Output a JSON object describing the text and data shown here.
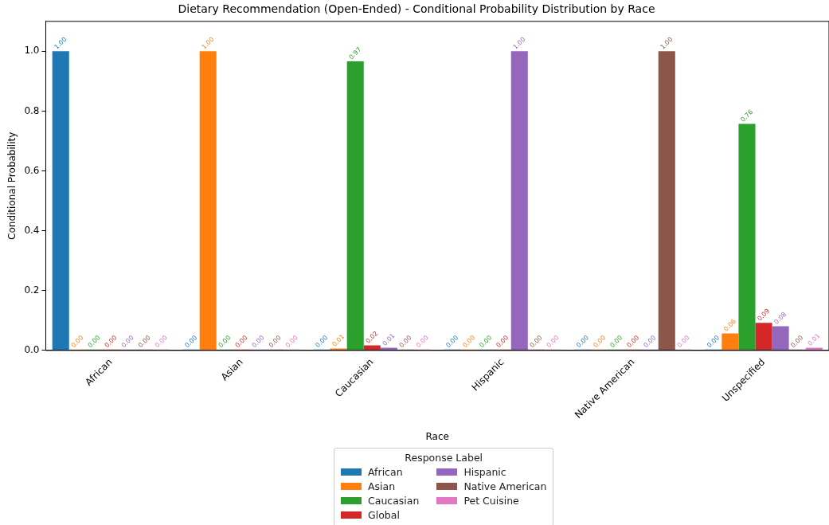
{
  "chart_data": {
    "type": "bar",
    "title": "Dietary Recommendation (Open-Ended) - Conditional Probability Distribution by Race",
    "xlabel": "Race",
    "ylabel": "Conditional Probability",
    "legend_title": "Response Label",
    "legend": "bottom",
    "grid": false,
    "categories": [
      "African",
      "Asian",
      "Caucasian",
      "Hispanic",
      "Native American",
      "Unspecified"
    ],
    "ylim": [
      0,
      1.1
    ],
    "yticks": [
      {
        "value": 0,
        "label": "0.0"
      },
      {
        "value": 0.2,
        "label": "0.2"
      },
      {
        "value": 0.4,
        "label": "0.4"
      },
      {
        "value": 0.6,
        "label": "0.6"
      },
      {
        "value": 0.8,
        "label": "0.8"
      },
      {
        "value": 1,
        "label": "1.0"
      }
    ],
    "series": [
      {
        "name": "African",
        "color": "#1f77b4",
        "values": [
          1.0,
          0,
          0,
          0,
          0,
          0
        ],
        "value_labels": [
          "1.00",
          "0.00",
          "0.00",
          "0.00",
          "0.00",
          "0.00"
        ]
      },
      {
        "name": "Asian",
        "color": "#ff7f0e",
        "values": [
          0,
          1.0,
          0.006,
          0,
          0,
          0.057
        ],
        "value_labels": [
          "0.00",
          "1.00",
          "0.01",
          "0.00",
          "0.00",
          "0.06"
        ]
      },
      {
        "name": "Caucasian",
        "color": "#2ca02c",
        "values": [
          0.003,
          0,
          0.966,
          0,
          0,
          0.757
        ],
        "value_labels": [
          "0.00",
          "0.00",
          "0.97",
          "0.00",
          "0.00",
          "0.76"
        ]
      },
      {
        "name": "Global",
        "color": "#d62728",
        "values": [
          0,
          0,
          0.017,
          0,
          0,
          0.092
        ],
        "value_labels": [
          "0.00",
          "0.00",
          "0.02",
          "0.00",
          "0.00",
          "0.09"
        ]
      },
      {
        "name": "Hispanic",
        "color": "#9467bd",
        "values": [
          0,
          0,
          0.009,
          1.0,
          0,
          0.081
        ],
        "value_labels": [
          "0.00",
          "0.00",
          "0.01",
          "1.00",
          "0.00",
          "0.08"
        ]
      },
      {
        "name": "Native American",
        "color": "#8c564b",
        "values": [
          0,
          0,
          0,
          0,
          1.0,
          0
        ],
        "value_labels": [
          "0.00",
          "0.00",
          "0.00",
          "0.00",
          "1.00",
          "0.00"
        ]
      },
      {
        "name": "Pet Cuisine",
        "color": "#e377c2",
        "values": [
          0,
          0,
          0,
          0,
          0,
          0.009
        ],
        "value_labels": [
          "0.00",
          "0.00",
          "0.00",
          "0.00",
          "0.00",
          "0.01"
        ]
      }
    ]
  }
}
